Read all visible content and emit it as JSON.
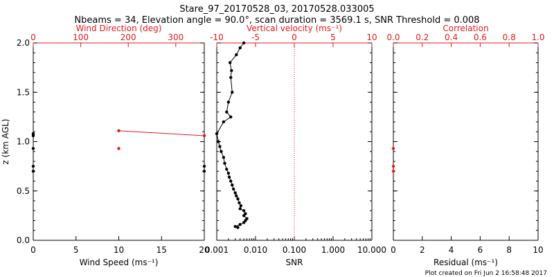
{
  "page": {
    "title_line1": "Stare_97_20170528_03, 20170528.033005",
    "title_line2": "Nbeams = 34, Elevation angle = 90.0°, scan duration = 3569.1 s, SNR Threshold = 0.008",
    "footer": "Plot created on Fri Jun  2 16:58:48 2017"
  },
  "colors": {
    "axis": "#000000",
    "accent": "#e41a1c",
    "background": "#ffffff"
  },
  "chart_data": [
    {
      "type": "scatter",
      "panel": "wind",
      "ylabel": "z (km AGL)",
      "ylim": [
        0,
        2
      ],
      "yticks": [
        "0.0",
        "0.5",
        "1.0",
        "1.5",
        "2.0"
      ],
      "bottom_axis": {
        "label": "Wind Speed (ms⁻¹)",
        "range": [
          0,
          20
        ],
        "ticks": [
          "0",
          "5",
          "10",
          "15",
          "20"
        ]
      },
      "top_axis": {
        "label": "Wind Direction (deg)",
        "range": [
          0,
          360
        ],
        "ticks": [
          "0",
          "100",
          "200",
          "300"
        ]
      },
      "series": [
        {
          "axis": "bottom",
          "style": "line",
          "color": "#e41a1c",
          "points": [
            [
              10,
              1.11
            ],
            [
              20,
              1.06
            ]
          ]
        },
        {
          "axis": "bottom",
          "style": "points",
          "color": "#e41a1c",
          "points": [
            [
              10,
              0.93
            ]
          ]
        },
        {
          "axis": "top",
          "style": "points",
          "color": "#000000",
          "points": [
            [
              0,
              1.08
            ],
            [
              0,
              1.06
            ],
            [
              0,
              0.93
            ],
            [
              0,
              0.75
            ],
            [
              0,
              0.7
            ],
            [
              360,
              0.75
            ],
            [
              360,
              0.7
            ]
          ]
        }
      ]
    },
    {
      "type": "line",
      "panel": "vertical_velocity",
      "ylim": [
        0,
        2
      ],
      "yticks": [
        "0.0",
        "0.5",
        "1.0",
        "1.5",
        "2.0"
      ],
      "bottom_axis": {
        "label": "SNR",
        "scale": "log",
        "range": [
          0.001,
          10
        ],
        "ticks": [
          "0.001",
          "0.010",
          "0.100",
          "1.000",
          "10.000"
        ]
      },
      "top_axis": {
        "label": "Vertical velocity (ms⁻¹)",
        "range": [
          -10,
          10
        ],
        "ticks": [
          "-10",
          "-5",
          "0",
          "5",
          "10"
        ],
        "reference_line": 0
      },
      "series": [
        {
          "color": "#000000",
          "axis": "bottom",
          "points": [
            [
              0.0035,
              0.13
            ],
            [
              0.003,
              0.14
            ],
            [
              0.004,
              0.16
            ],
            [
              0.005,
              0.18
            ],
            [
              0.0055,
              0.2
            ],
            [
              0.006,
              0.22
            ],
            [
              0.005,
              0.25
            ],
            [
              0.0055,
              0.27
            ],
            [
              0.005,
              0.3
            ],
            [
              0.004,
              0.32
            ],
            [
              0.0042,
              0.35
            ],
            [
              0.0038,
              0.38
            ],
            [
              0.0035,
              0.42
            ],
            [
              0.0032,
              0.45
            ],
            [
              0.003,
              0.48
            ],
            [
              0.0027,
              0.52
            ],
            [
              0.0025,
              0.56
            ],
            [
              0.0023,
              0.6
            ],
            [
              0.0021,
              0.64
            ],
            [
              0.002,
              0.68
            ],
            [
              0.0018,
              0.72
            ],
            [
              0.0016,
              0.78
            ],
            [
              0.0015,
              0.84
            ],
            [
              0.0013,
              0.9
            ],
            [
              0.0012,
              0.95
            ],
            [
              0.0011,
              1.0
            ],
            [
              0.001,
              1.08
            ],
            [
              0.0015,
              1.2
            ],
            [
              0.0023,
              1.25
            ],
            [
              0.0018,
              1.3
            ],
            [
              0.002,
              1.4
            ],
            [
              0.0025,
              1.5
            ],
            [
              0.0023,
              1.65
            ],
            [
              0.0024,
              1.72
            ],
            [
              0.0022,
              1.8
            ],
            [
              0.0032,
              1.88
            ],
            [
              0.004,
              1.95
            ],
            [
              0.005,
              2.0
            ]
          ]
        }
      ]
    },
    {
      "type": "scatter",
      "panel": "correlation",
      "ylim": [
        0,
        2
      ],
      "yticks": [
        "0.0",
        "0.5",
        "1.0",
        "1.5",
        "2.0"
      ],
      "bottom_axis": {
        "label": "Residual (ms⁻¹)",
        "range": [
          0,
          10
        ],
        "ticks": [
          "0",
          "2",
          "4",
          "6",
          "8",
          "10"
        ]
      },
      "top_axis": {
        "label": "Correlation",
        "range": [
          0,
          1
        ],
        "ticks": [
          "0.0",
          "0.2",
          "0.4",
          "0.6",
          "0.8",
          "1.0"
        ]
      },
      "series": [
        {
          "axis": "bottom",
          "color": "#e41a1c",
          "points": [
            [
              0,
              0.93
            ],
            [
              0,
              0.75
            ],
            [
              0,
              0.7
            ]
          ]
        }
      ]
    }
  ]
}
